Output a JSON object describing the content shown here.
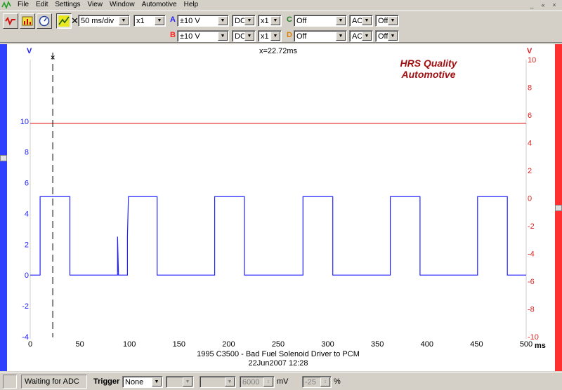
{
  "menu": {
    "items": [
      "File",
      "Edit",
      "Settings",
      "View",
      "Window",
      "Automotive",
      "Help"
    ],
    "window_controls": [
      "_",
      "«",
      "×"
    ]
  },
  "toolbar": {
    "timebase": "50 ms/div",
    "zoom": "x1",
    "channels": [
      {
        "label": "A",
        "color": "#2020ff",
        "range": "±10 V",
        "coupling": "DC",
        "multiplier": "x1"
      },
      {
        "label": "B",
        "color": "#ff2020",
        "range": "±10 V",
        "coupling": "DC",
        "multiplier": "x1"
      },
      {
        "label": "C",
        "color": "#208020",
        "range": "Off",
        "coupling": "AC",
        "multiplier": "Off"
      },
      {
        "label": "D",
        "color": "#e08000",
        "range": "Off",
        "coupling": "AC",
        "multiplier": "Off"
      }
    ]
  },
  "scope": {
    "left_unit": "V",
    "right_unit": "V",
    "cursor_readout": "x=22.72ms",
    "cursor_marker": "×",
    "watermark_line1": "HRS Quality",
    "watermark_line2": "Automotive",
    "caption_line1": "1995 C3500 - Bad Fuel Solenoid Driver to PCM",
    "caption_line2": "22Jun2007  12:28",
    "x_unit": "ms",
    "x_ticks": [
      "0",
      "50",
      "100",
      "150",
      "200",
      "250",
      "300",
      "350",
      "400",
      "450",
      "500"
    ],
    "left_ticks": [
      "10",
      "8",
      "6",
      "4",
      "2",
      "0",
      "-2",
      "-4"
    ],
    "right_ticks": [
      "10",
      "8",
      "6",
      "4",
      "2",
      "0",
      "-2",
      "-4",
      "-6",
      "-8",
      "-10"
    ]
  },
  "chart_data": {
    "type": "line",
    "x_range": [
      0,
      500
    ],
    "left_axis_range": [
      -4,
      14
    ],
    "right_axis_range": [
      -10,
      10
    ],
    "cursor_x_ms": 22.72,
    "series": [
      {
        "name": "A",
        "color": "#2020ff",
        "axis": "left",
        "points": [
          [
            0,
            0
          ],
          [
            10,
            0
          ],
          [
            10,
            5.1
          ],
          [
            40,
            5.1
          ],
          [
            40,
            0
          ],
          [
            88,
            0
          ],
          [
            88,
            2.5
          ],
          [
            89,
            0
          ],
          [
            98,
            0
          ],
          [
            98,
            2.5
          ],
          [
            99,
            5.1
          ],
          [
            128,
            5.1
          ],
          [
            128,
            0
          ],
          [
            186,
            0
          ],
          [
            186,
            5.1
          ],
          [
            216,
            5.1
          ],
          [
            216,
            0
          ],
          [
            275,
            0
          ],
          [
            275,
            5.1
          ],
          [
            305,
            5.1
          ],
          [
            305,
            0
          ],
          [
            363,
            0
          ],
          [
            363,
            5.1
          ],
          [
            393,
            5.1
          ],
          [
            393,
            0
          ],
          [
            451,
            0
          ],
          [
            451,
            5.1
          ],
          [
            481,
            5.1
          ],
          [
            481,
            0
          ],
          [
            500,
            0
          ]
        ]
      },
      {
        "name": "B",
        "color": "#e02020",
        "axis": "right",
        "points": [
          [
            0,
            5.4
          ],
          [
            500,
            5.4
          ]
        ]
      }
    ]
  },
  "status": {
    "message": "Waiting for ADC",
    "trigger_label": "Trigger",
    "trigger_mode": "None",
    "level_value": "6000",
    "level_unit": "mV",
    "percent_value": "-25",
    "percent_unit": "%"
  }
}
